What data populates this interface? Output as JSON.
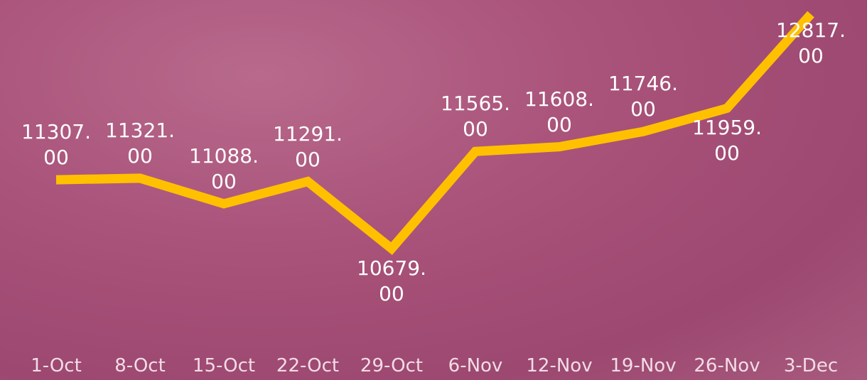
{
  "chart_data": {
    "type": "line",
    "categories": [
      "1-Oct",
      "8-Oct",
      "15-Oct",
      "22-Oct",
      "29-Oct",
      "6-Nov",
      "12-Nov",
      "19-Nov",
      "26-Nov",
      "3-Dec"
    ],
    "series": [
      {
        "color": "#ffc000",
        "values": [
          11307,
          11321,
          11088,
          11291,
          10679,
          11565,
          11608,
          11746,
          11959,
          12817
        ],
        "value_labels": [
          "11307.00",
          "11321.00",
          "11088.00",
          "11291.00",
          "10679.00",
          "11565.00",
          "11608.00",
          "11746.00",
          "11959.00",
          "12817.00"
        ]
      }
    ]
  }
}
